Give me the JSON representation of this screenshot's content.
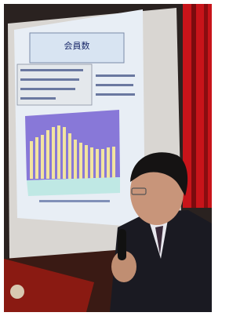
{
  "slide": {
    "title": "会員数"
  }
}
